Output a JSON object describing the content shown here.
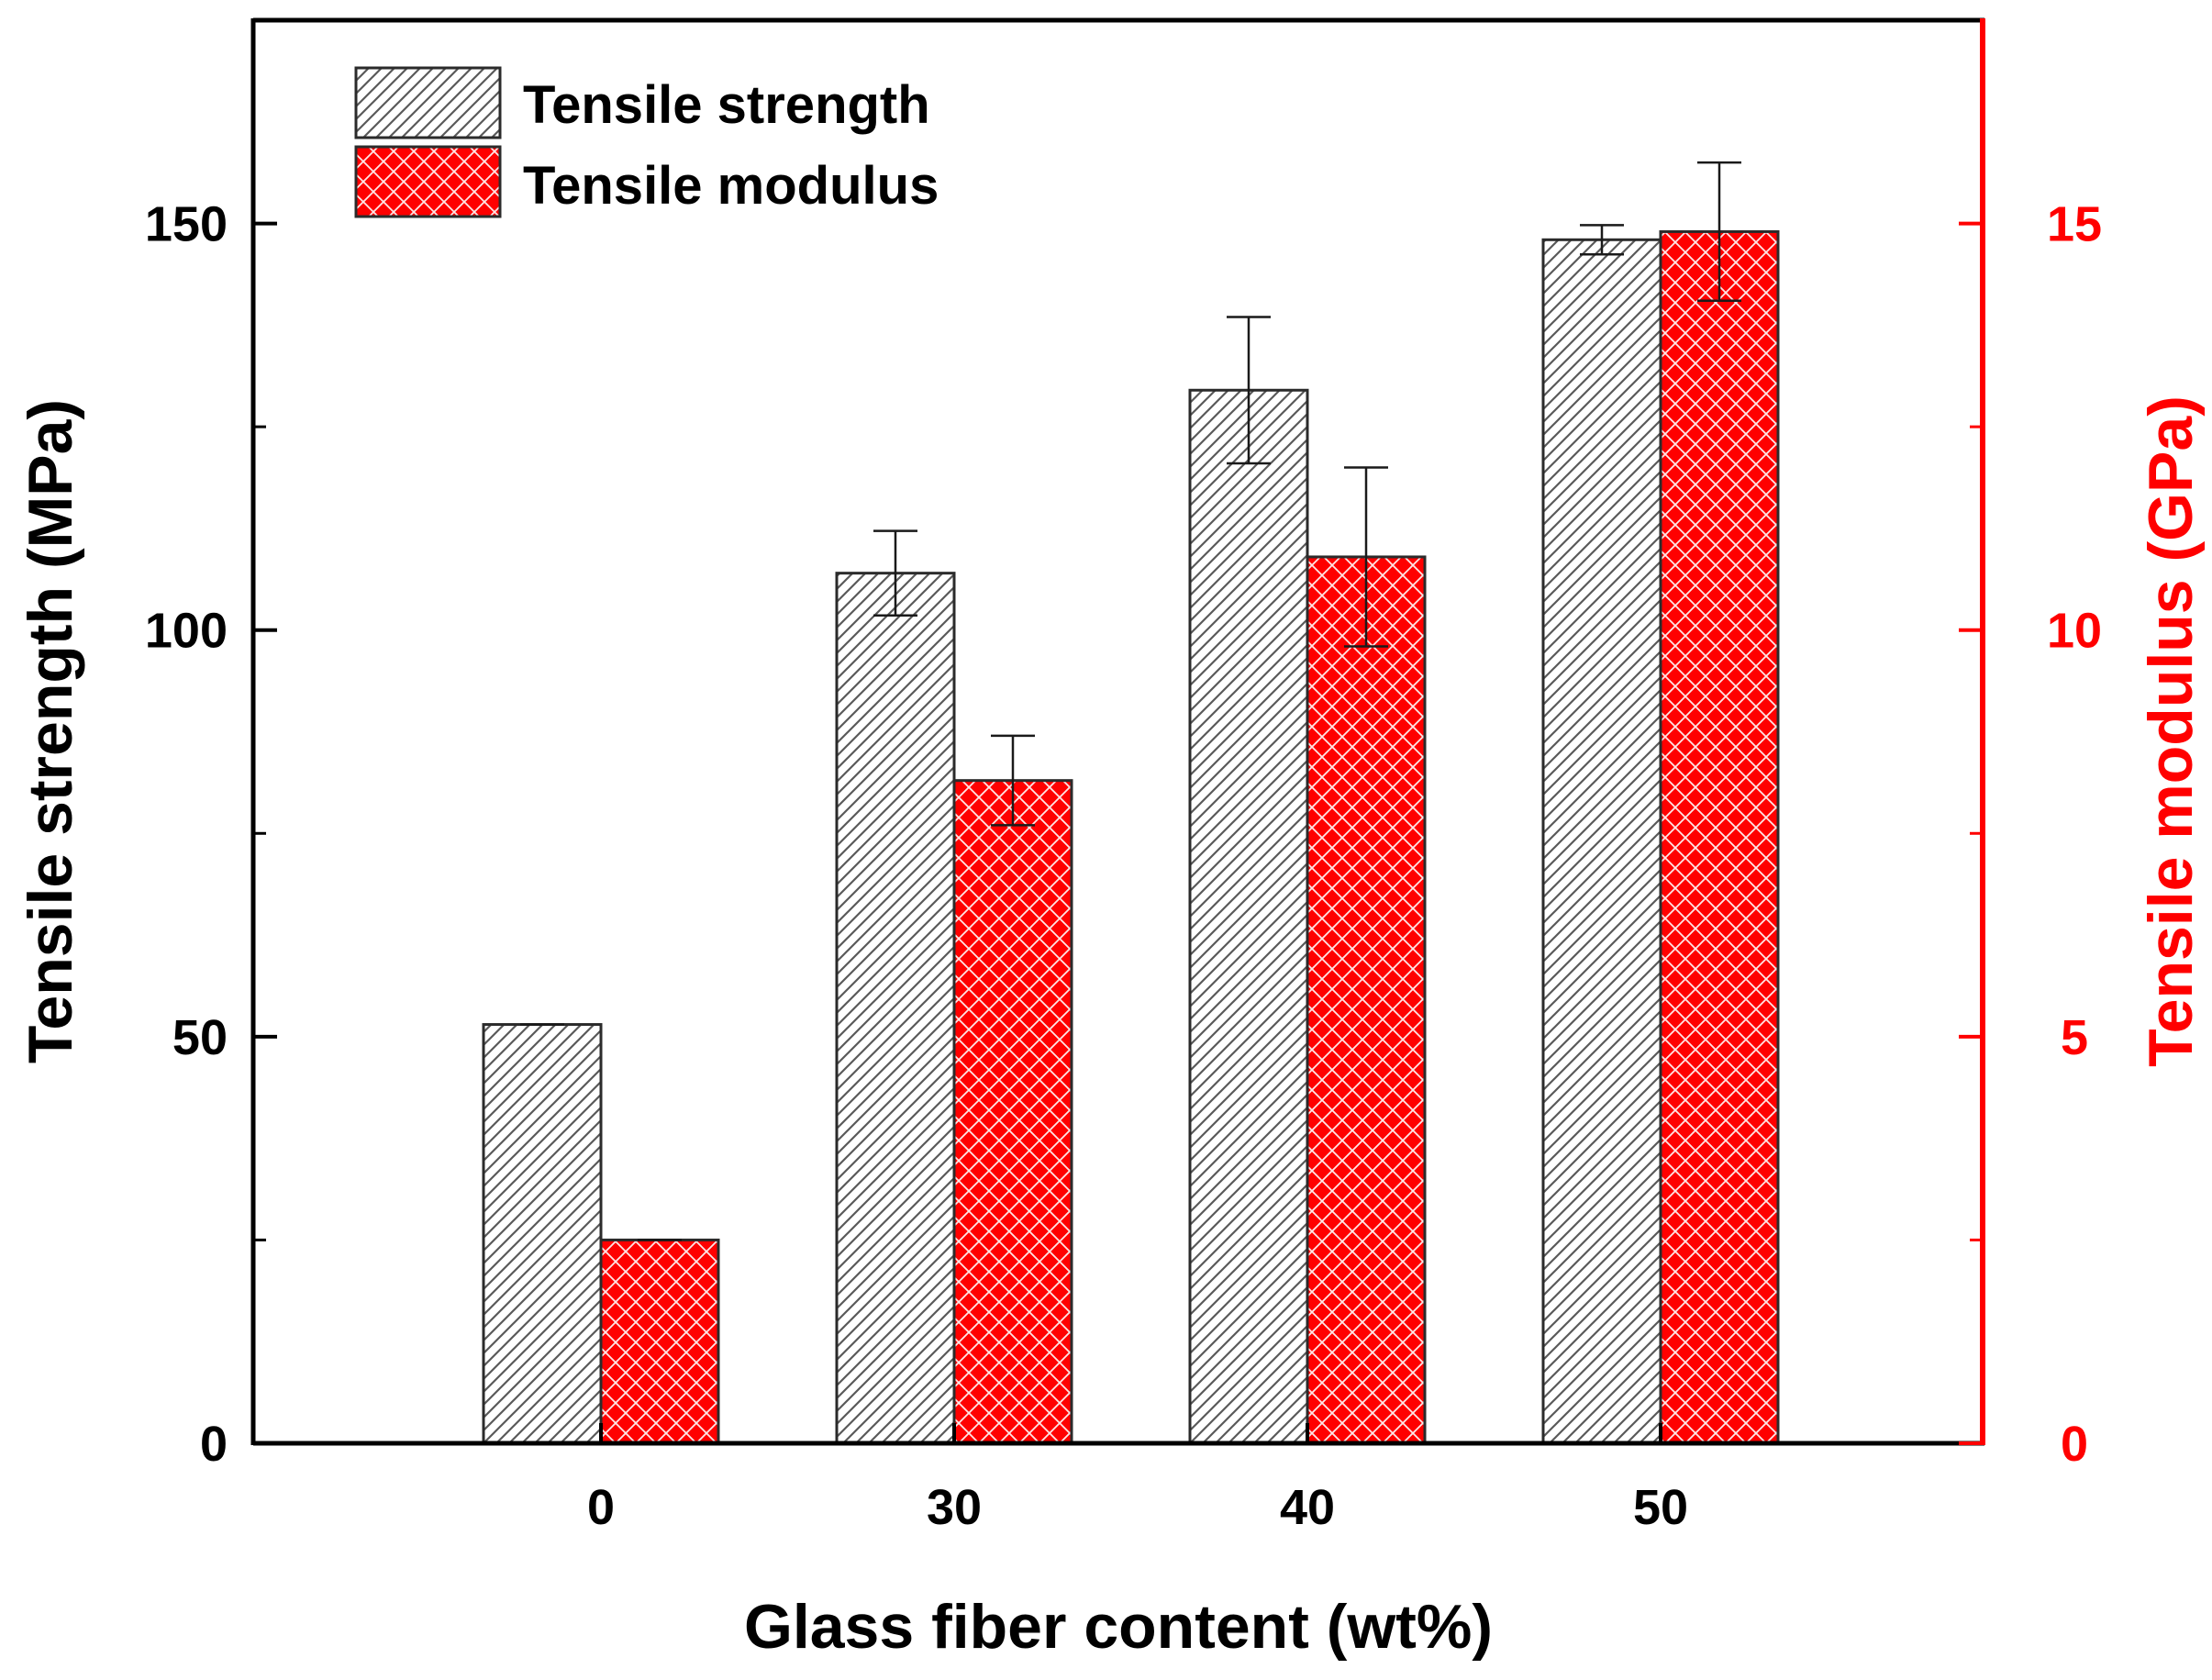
{
  "chart_data": {
    "type": "bar",
    "title": "",
    "xlabel": "Glass fiber content (wt%)",
    "ylabel": "Tensile strength (MPa)",
    "y2label": "Tensile modulus (GPa)",
    "categories": [
      "0",
      "30",
      "40",
      "50"
    ],
    "ylim": [
      0,
      175
    ],
    "y2lim": [
      0,
      17.5
    ],
    "yticks": [
      0,
      50,
      100,
      150
    ],
    "y2ticks": [
      0,
      5,
      10,
      15
    ],
    "legend_position": "top-left",
    "series": [
      {
        "name": "Tensile strength",
        "axis": "left",
        "pattern": "diagonal-hatch",
        "color": "#ffffff",
        "edge": "#2b2b2b",
        "values": [
          51.5,
          107,
          129.5,
          148
        ],
        "errors": [
          0,
          5.2,
          9,
          1.8
        ]
      },
      {
        "name": "Tensile modulus",
        "axis": "right",
        "pattern": "crosshatch",
        "color": "#ff0000",
        "edge": "#2b2b2b",
        "values": [
          2.5,
          8.15,
          10.9,
          14.9
        ],
        "errors": [
          0,
          0.55,
          1.1,
          0.85
        ]
      }
    ],
    "colors": {
      "axis_left": "#000000",
      "axis_right": "#ff0000"
    }
  }
}
